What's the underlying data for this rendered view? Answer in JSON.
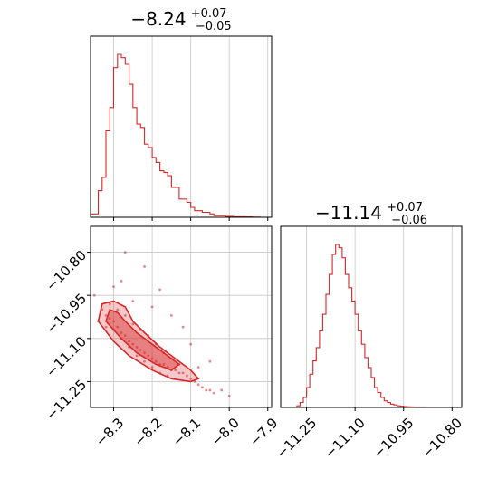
{
  "chart_data": [
    {
      "panel": "marginal-x",
      "type": "histogram",
      "title": {
        "value": "−8.24",
        "upper": "+0.07",
        "lower": "−0.05"
      },
      "xlim": [
        -8.36,
        -7.89
      ],
      "ylim": [
        0,
        1
      ],
      "xticks": [
        -8.3,
        -8.2,
        -8.1,
        -8.0,
        -7.9
      ],
      "xtick_labels": [],
      "grid": true,
      "color": "#d62728",
      "bins": {
        "edges": [
          -8.36,
          -8.35,
          -8.34,
          -8.33,
          -8.32,
          -8.31,
          -8.3,
          -8.29,
          -8.28,
          -8.27,
          -8.26,
          -8.25,
          -8.24,
          -8.23,
          -8.22,
          -8.21,
          -8.2,
          -8.19,
          -8.18,
          -8.17,
          -8.16,
          -8.15,
          -8.14,
          -8.13,
          -8.12,
          -8.11,
          -8.1,
          -8.09,
          -8.08,
          -8.07,
          -8.06,
          -8.05,
          -8.04,
          -8.03,
          -8.02,
          -8.01,
          -8.0,
          -7.99,
          -7.98,
          -7.97,
          -7.96,
          -7.95,
          -7.94,
          -7.93,
          -7.92,
          -7.91,
          -7.9,
          -7.89
        ],
        "counts": [
          0.02,
          0.02,
          0.16,
          0.24,
          0.52,
          0.66,
          0.9,
          0.98,
          0.96,
          0.92,
          0.8,
          0.66,
          0.56,
          0.54,
          0.44,
          0.42,
          0.36,
          0.33,
          0.28,
          0.27,
          0.25,
          0.18,
          0.18,
          0.11,
          0.11,
          0.09,
          0.06,
          0.04,
          0.04,
          0.03,
          0.03,
          0.02,
          0.01,
          0.01,
          0.01,
          0.005,
          0.005,
          0.003,
          0.003,
          0.003,
          0.002,
          0.002,
          0.001,
          0.001,
          0.0,
          0.0,
          0.0
        ]
      }
    },
    {
      "panel": "marginal-y",
      "type": "histogram",
      "title": {
        "value": "−11.14",
        "upper": "+0.07",
        "lower": "−0.06"
      },
      "xlim": [
        -11.33,
        -10.77
      ],
      "ylim": [
        0,
        1
      ],
      "xticks": [
        -11.25,
        -11.1,
        -10.95,
        -10.8
      ],
      "xtick_labels": [
        "−11.25",
        "−11.10",
        "−10.95",
        "−10.80"
      ],
      "grid": true,
      "color": "#d62728",
      "bins": {
        "edges": [
          -11.33,
          -11.32,
          -11.31,
          -11.3,
          -11.29,
          -11.28,
          -11.27,
          -11.26,
          -11.25,
          -11.24,
          -11.23,
          -11.22,
          -11.21,
          -11.2,
          -11.19,
          -11.18,
          -11.17,
          -11.16,
          -11.15,
          -11.14,
          -11.13,
          -11.12,
          -11.11,
          -11.1,
          -11.09,
          -11.08,
          -11.07,
          -11.06,
          -11.05,
          -11.04,
          -11.03,
          -11.02,
          -11.01,
          -11.0,
          -10.99,
          -10.98,
          -10.97,
          -10.96,
          -10.95,
          -10.94,
          -10.93,
          -10.92,
          -10.91,
          -10.9,
          -10.89,
          -10.88,
          -10.87,
          -10.86,
          -10.85,
          -10.84,
          -10.83,
          -10.82,
          -10.81,
          -10.8,
          -10.79,
          -10.78,
          -10.77
        ],
        "counts": [
          0.0,
          0.0,
          0.0,
          0.0,
          0.0,
          0.01,
          0.03,
          0.06,
          0.12,
          0.2,
          0.28,
          0.36,
          0.46,
          0.56,
          0.68,
          0.8,
          0.92,
          0.98,
          0.96,
          0.9,
          0.8,
          0.72,
          0.64,
          0.56,
          0.46,
          0.38,
          0.3,
          0.24,
          0.18,
          0.12,
          0.09,
          0.06,
          0.04,
          0.03,
          0.02,
          0.015,
          0.01,
          0.008,
          0.005,
          0.004,
          0.003,
          0.002,
          0.0015,
          0.001,
          0.001,
          0.0,
          0.0,
          0.0,
          0.0,
          0.0,
          0.0,
          0.0,
          0.0,
          0.0,
          0.0,
          0.0
        ]
      }
    },
    {
      "panel": "joint",
      "type": "scatter",
      "xlim": [
        -8.36,
        -7.89
      ],
      "ylim": [
        -11.34,
        -10.71
      ],
      "xticks": [
        -8.3,
        -8.2,
        -8.1,
        -8.0,
        -7.9
      ],
      "xtick_labels": [
        "−8.3",
        "−8.2",
        "−8.1",
        "−8.0",
        "−7.9"
      ],
      "yticks": [
        -10.8,
        -10.95,
        -11.1,
        -11.25
      ],
      "ytick_labels": [
        "−10.80",
        "−10.95",
        "−11.10",
        "−11.25"
      ],
      "grid": true,
      "color": "#d62728",
      "points": [
        [
          -8.33,
          -11.0
        ],
        [
          -8.32,
          -11.02
        ],
        [
          -8.31,
          -11.03
        ],
        [
          -8.3,
          -11.04
        ],
        [
          -8.29,
          -11.06
        ],
        [
          -8.28,
          -11.08
        ],
        [
          -8.27,
          -11.09
        ],
        [
          -8.26,
          -11.11
        ],
        [
          -8.25,
          -11.12
        ],
        [
          -8.24,
          -11.13
        ],
        [
          -8.23,
          -11.14
        ],
        [
          -8.22,
          -11.15
        ],
        [
          -8.21,
          -11.16
        ],
        [
          -8.2,
          -11.17
        ],
        [
          -8.19,
          -11.18
        ],
        [
          -8.18,
          -11.19
        ],
        [
          -8.17,
          -11.19
        ],
        [
          -8.16,
          -11.2
        ],
        [
          -8.15,
          -11.21
        ],
        [
          -8.14,
          -11.21
        ],
        [
          -8.13,
          -11.22
        ],
        [
          -8.12,
          -11.22
        ],
        [
          -8.11,
          -11.23
        ],
        [
          -8.1,
          -11.24
        ],
        [
          -8.09,
          -11.25
        ],
        [
          -8.08,
          -11.26
        ],
        [
          -8.07,
          -11.27
        ],
        [
          -8.06,
          -11.28
        ],
        [
          -8.05,
          -11.28
        ],
        [
          -8.04,
          -11.29
        ],
        [
          -8.31,
          -10.98
        ],
        [
          -8.29,
          -11.0
        ],
        [
          -8.27,
          -11.02
        ],
        [
          -8.25,
          -11.05
        ],
        [
          -8.23,
          -11.07
        ],
        [
          -8.21,
          -11.09
        ],
        [
          -8.19,
          -11.12
        ],
        [
          -8.17,
          -11.15
        ],
        [
          -8.15,
          -11.17
        ],
        [
          -8.13,
          -11.19
        ],
        [
          -8.34,
          -11.04
        ],
        [
          -8.32,
          -11.06
        ],
        [
          -8.3,
          -11.07
        ],
        [
          -8.28,
          -11.1
        ],
        [
          -8.26,
          -11.13
        ],
        [
          -8.24,
          -11.16
        ],
        [
          -8.22,
          -11.18
        ],
        [
          -8.2,
          -11.2
        ],
        [
          -8.18,
          -11.22
        ],
        [
          -8.16,
          -11.23
        ],
        [
          -8.22,
          -10.85
        ],
        [
          -8.28,
          -10.9
        ],
        [
          -8.18,
          -10.93
        ],
        [
          -8.25,
          -10.97
        ],
        [
          -8.12,
          -11.06
        ],
        [
          -8.1,
          -11.12
        ],
        [
          -8.05,
          -11.18
        ],
        [
          -8.3,
          -10.92
        ],
        [
          -8.15,
          -11.02
        ],
        [
          -8.2,
          -10.99
        ],
        [
          -8.02,
          -11.28
        ],
        [
          -8.0,
          -11.3
        ],
        [
          -8.08,
          -11.2
        ],
        [
          -8.35,
          -10.95
        ],
        [
          -8.27,
          -10.8
        ]
      ],
      "contours": {
        "outer": [
          [
            -8.34,
            -11.04
          ],
          [
            -8.33,
            -10.98
          ],
          [
            -8.3,
            -10.97
          ],
          [
            -8.27,
            -10.99
          ],
          [
            -8.25,
            -11.04
          ],
          [
            -8.22,
            -11.08
          ],
          [
            -8.18,
            -11.13
          ],
          [
            -8.14,
            -11.17
          ],
          [
            -8.1,
            -11.21
          ],
          [
            -8.08,
            -11.24
          ],
          [
            -8.1,
            -11.25
          ],
          [
            -8.15,
            -11.24
          ],
          [
            -8.2,
            -11.21
          ],
          [
            -8.26,
            -11.16
          ],
          [
            -8.3,
            -11.11
          ]
        ],
        "inner": [
          [
            -8.32,
            -11.04
          ],
          [
            -8.31,
            -11.0
          ],
          [
            -8.29,
            -11.01
          ],
          [
            -8.27,
            -11.04
          ],
          [
            -8.24,
            -11.08
          ],
          [
            -8.2,
            -11.12
          ],
          [
            -8.16,
            -11.16
          ],
          [
            -8.13,
            -11.19
          ],
          [
            -8.15,
            -11.21
          ],
          [
            -8.19,
            -11.19
          ],
          [
            -8.24,
            -11.15
          ],
          [
            -8.28,
            -11.1
          ]
        ]
      }
    }
  ]
}
